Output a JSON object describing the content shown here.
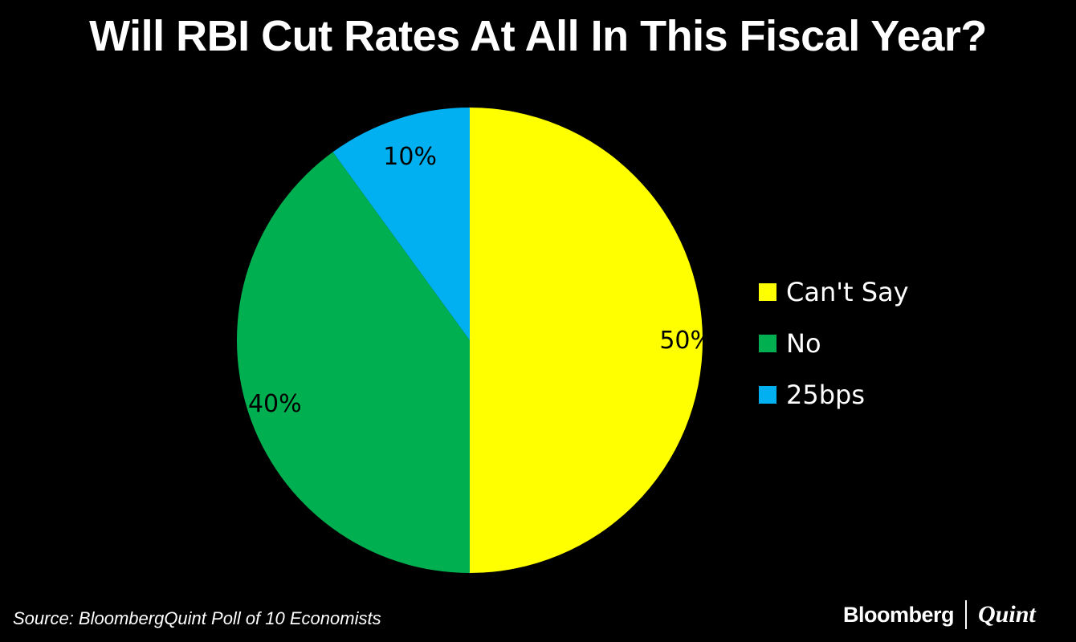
{
  "title": "Will RBI Cut Rates At All In This Fiscal Year?",
  "source": "Source: BloombergQuint Poll of 10 Economists",
  "brand": {
    "left": "Bloomberg",
    "right": "Quint"
  },
  "chart_data": {
    "type": "pie",
    "title": "Will RBI Cut Rates At All In This Fiscal Year?",
    "slices": [
      {
        "label": "Can't Say",
        "value": 50,
        "display": "50%",
        "color": "#FFFF00"
      },
      {
        "label": "No",
        "value": 40,
        "display": "40%",
        "color": "#00B050"
      },
      {
        "label": "25bps",
        "value": 10,
        "display": "10%",
        "color": "#00B0F0"
      }
    ],
    "start": "12 o'clock, clockwise",
    "legend_position": "right"
  }
}
